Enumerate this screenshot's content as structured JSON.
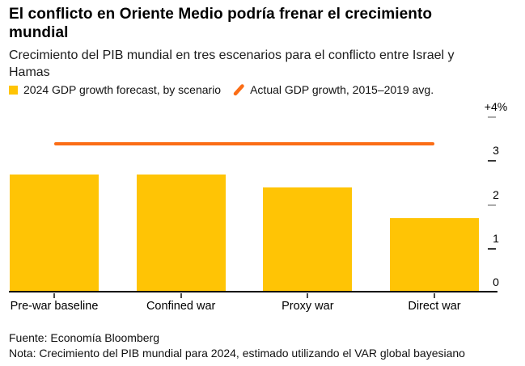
{
  "header": {
    "title": "El conflicto en Oriente Medio podría frenar el crecimiento\nmundial",
    "subtitle": "Crecimiento del PIB mundial en tres escenarios para el conflicto entre Israel y\nHamas"
  },
  "legend": {
    "items": [
      {
        "label": "2024 GDP growth forecast, by scenario",
        "swatch": "square",
        "color": "#FFC405"
      },
      {
        "label": "Actual GDP growth, 2015–2019 avg.",
        "swatch": "slash",
        "color": "#FB6D16"
      }
    ]
  },
  "chart_data": {
    "type": "bar",
    "title": "El conflicto en Oriente Medio podría frenar el crecimiento mundial",
    "subtitle": "Crecimiento del PIB mundial en tres escenarios para el conflicto entre Israel y Hamas",
    "categories": [
      "Pre-war baseline",
      "Confined war",
      "Proxy war",
      "Direct war"
    ],
    "series": [
      {
        "name": "2024 GDP growth forecast, by scenario",
        "type": "bar",
        "values": [
          2.7,
          2.7,
          2.4,
          1.7
        ],
        "color": "#FFC405"
      },
      {
        "name": "Actual GDP growth, 2015–2019 avg.",
        "type": "reference-line",
        "value": 3.4,
        "color": "#FB6D16"
      }
    ],
    "xlabel": "",
    "ylabel": "",
    "ylim": [
      0,
      4
    ],
    "grid": false,
    "legend_position": "top",
    "y_axis": {
      "side": "right",
      "ticks": [
        {
          "value": 4,
          "label": "+4%",
          "dash_color": "#ABABAB"
        },
        {
          "value": 3,
          "label": "3",
          "dash_color": "#383838"
        },
        {
          "value": 2,
          "label": "2",
          "dash_color": "#ABABAB"
        },
        {
          "value": 1,
          "label": "1",
          "dash_color": "#383838"
        },
        {
          "value": 0,
          "label": "0",
          "dash_color": null
        }
      ]
    }
  },
  "footer": {
    "source": "Fuente: Economía Bloomberg",
    "note": "Nota: Crecimiento del PIB mundial para 2024, estimado utilizando el VAR global bayesiano"
  }
}
